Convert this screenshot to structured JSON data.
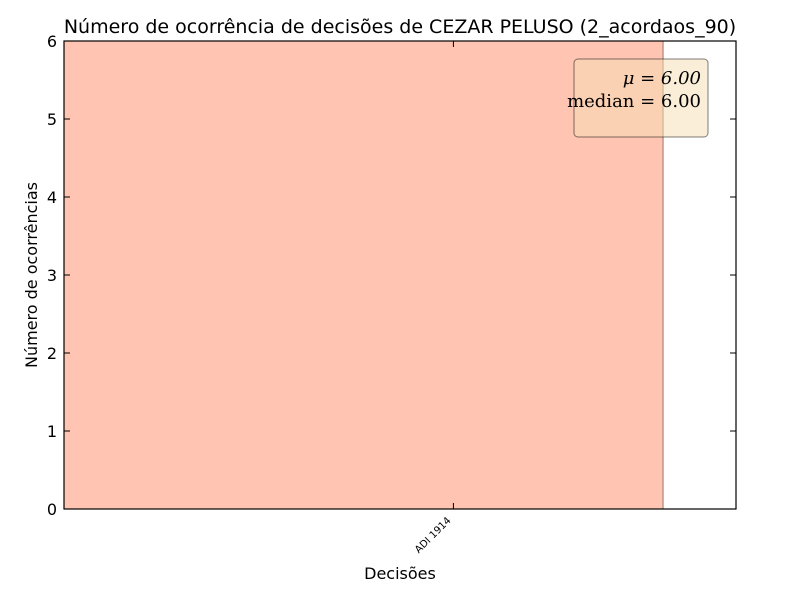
{
  "chart_data": {
    "type": "bar",
    "title": "Número de ocorrência de decisões de CEZAR PELUSO (2_acordaos_90)",
    "xlabel": "Decisões",
    "ylabel": "Número de ocorrências",
    "categories": [
      "ADI 1914"
    ],
    "values": [
      6
    ],
    "ylim": [
      0,
      6
    ],
    "yticks": [
      "0",
      "1",
      "2",
      "3",
      "4",
      "5",
      "6"
    ],
    "bar_color": "#ff9573",
    "stats": {
      "mean_label": "μ = 6.00",
      "median_label": "median = 6.00"
    },
    "stats_box_placement": "top-right",
    "grid": false
  }
}
